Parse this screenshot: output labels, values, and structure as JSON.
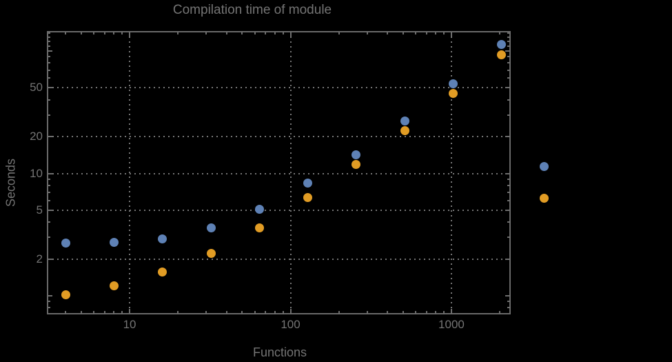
{
  "chart_data": {
    "type": "scatter",
    "title": "Compilation time of module",
    "xlabel": "Functions",
    "ylabel": "Seconds",
    "xscale": "log",
    "yscale": "log",
    "xlim": [
      3.09,
      2313
    ],
    "ylim": [
      0.714,
      143.8
    ],
    "grid": true,
    "background_color": "#000000",
    "frame_color": "#6a6a6a",
    "grid_color": "#757575",
    "label_color": "#747474",
    "marker_size_px": 13,
    "x": [
      4,
      8,
      16,
      32,
      64,
      128,
      256,
      512,
      1024,
      2048
    ],
    "series": [
      {
        "name": "series-blue",
        "color": "#5e81b5",
        "values": [
          2.7,
          2.73,
          2.9,
          3.57,
          5.11,
          8.3,
          14.2,
          26.7,
          54.3,
          113
        ]
      },
      {
        "name": "series-orange",
        "color": "#e19c24",
        "values": [
          1.02,
          1.21,
          1.56,
          2.23,
          3.61,
          6.33,
          11.8,
          22.3,
          45.3,
          93
        ]
      }
    ],
    "x_ticks": [
      {
        "value": 10,
        "label": "10"
      },
      {
        "value": 100,
        "label": "100"
      },
      {
        "value": 1000,
        "label": "1000"
      }
    ],
    "x_minor_ticks": [
      4,
      5,
      6,
      7,
      8,
      9,
      20,
      30,
      40,
      50,
      60,
      70,
      80,
      90,
      200,
      300,
      400,
      500,
      600,
      700,
      800,
      900,
      2000
    ],
    "y_ticks": [
      {
        "value": 2,
        "label": "2"
      },
      {
        "value": 5,
        "label": "5"
      },
      {
        "value": 10,
        "label": "10"
      },
      {
        "value": 20,
        "label": "20"
      },
      {
        "value": 50,
        "label": "50"
      }
    ],
    "y_major_unlabeled_ticks": [
      1,
      100
    ],
    "y_minor_ticks": [
      0.8,
      0.9,
      3,
      4,
      6,
      7,
      8,
      9,
      30,
      40,
      60,
      70,
      80,
      90,
      110,
      120,
      130,
      140
    ],
    "legend_markers": [
      {
        "name": "legend-marker-blue",
        "color": "#5e81b5",
        "label": ""
      },
      {
        "name": "legend-marker-orange",
        "color": "#e19c24",
        "label": ""
      }
    ]
  }
}
